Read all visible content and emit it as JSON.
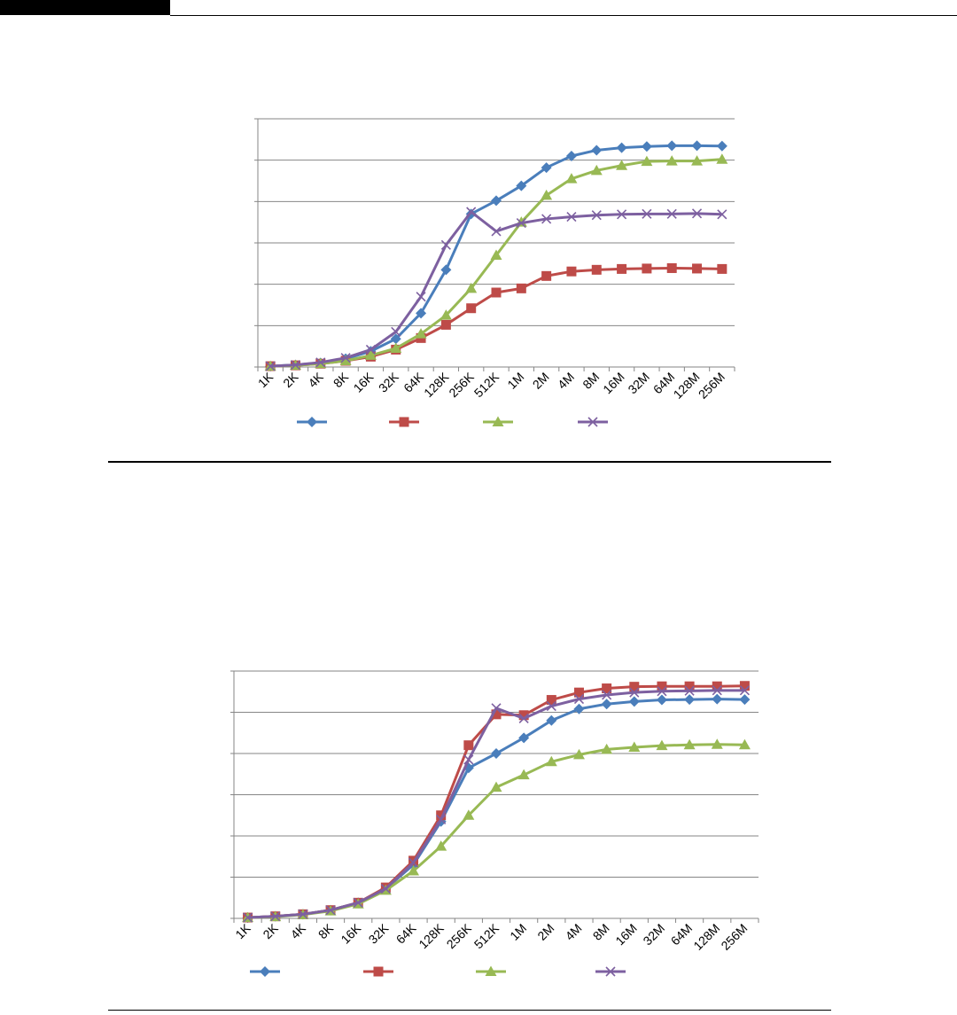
{
  "colors": {
    "series_1": "#4A7EBB",
    "series_2": "#BE4B48",
    "series_3": "#98B954",
    "series_4": "#7D60A0",
    "gridline": "#868686",
    "axis": "#868686"
  },
  "chart_data": [
    {
      "type": "line",
      "title": "",
      "xlabel": "",
      "ylabel": "",
      "categories": [
        "1K",
        "2K",
        "4K",
        "8K",
        "16K",
        "32K",
        "64K",
        "128K",
        "256K",
        "512K",
        "1M",
        "2M",
        "4M",
        "8M",
        "16M",
        "32M",
        "64M",
        "128M",
        "256M"
      ],
      "ylim": [
        0,
        6
      ],
      "yticks": [
        0,
        1,
        2,
        3,
        4,
        5,
        6
      ],
      "y_tick_labels_shown": false,
      "grid": true,
      "legend_position": "bottom",
      "series": [
        {
          "marker": "diamond",
          "color": "#4A7EBB",
          "values": [
            0.02,
            0.05,
            0.1,
            0.2,
            0.38,
            0.68,
            1.3,
            2.35,
            3.7,
            4.02,
            4.38,
            4.82,
            5.1,
            5.24,
            5.3,
            5.33,
            5.35,
            5.35,
            5.34
          ]
        },
        {
          "marker": "square",
          "color": "#BE4B48",
          "values": [
            0.02,
            0.04,
            0.08,
            0.15,
            0.25,
            0.42,
            0.7,
            1.02,
            1.42,
            1.8,
            1.9,
            2.2,
            2.31,
            2.35,
            2.37,
            2.38,
            2.39,
            2.38,
            2.37
          ]
        },
        {
          "marker": "triangle",
          "color": "#98B954",
          "values": [
            0.02,
            0.04,
            0.08,
            0.15,
            0.28,
            0.45,
            0.8,
            1.25,
            1.9,
            2.7,
            3.5,
            4.15,
            4.55,
            4.75,
            4.87,
            4.97,
            4.98,
            4.98,
            5.02
          ]
        },
        {
          "marker": "x",
          "color": "#7D60A0",
          "values": [
            0.02,
            0.05,
            0.11,
            0.22,
            0.42,
            0.85,
            1.7,
            2.95,
            3.75,
            3.28,
            3.48,
            3.58,
            3.63,
            3.67,
            3.69,
            3.7,
            3.7,
            3.71,
            3.69
          ]
        }
      ]
    },
    {
      "type": "line",
      "title": "",
      "xlabel": "",
      "ylabel": "",
      "categories": [
        "1K",
        "2K",
        "4K",
        "8K",
        "16K",
        "32K",
        "64K",
        "128K",
        "256K",
        "512K",
        "1M",
        "2M",
        "4M",
        "8M",
        "16M",
        "32M",
        "64M",
        "128M",
        "256M"
      ],
      "ylim": [
        0,
        6
      ],
      "yticks": [
        0,
        1,
        2,
        3,
        4,
        5,
        6
      ],
      "y_tick_labels_shown": false,
      "grid": true,
      "legend_position": "bottom",
      "series": [
        {
          "marker": "diamond",
          "color": "#4A7EBB",
          "values": [
            0.02,
            0.05,
            0.1,
            0.2,
            0.38,
            0.72,
            1.3,
            2.35,
            3.65,
            4.0,
            4.38,
            4.8,
            5.08,
            5.2,
            5.26,
            5.3,
            5.31,
            5.32,
            5.31
          ]
        },
        {
          "marker": "square",
          "color": "#BE4B48",
          "values": [
            0.02,
            0.05,
            0.1,
            0.2,
            0.38,
            0.75,
            1.4,
            2.5,
            4.2,
            4.95,
            4.93,
            5.3,
            5.48,
            5.58,
            5.62,
            5.63,
            5.63,
            5.63,
            5.64
          ]
        },
        {
          "marker": "triangle",
          "color": "#98B954",
          "values": [
            0.02,
            0.04,
            0.09,
            0.18,
            0.35,
            0.68,
            1.15,
            1.75,
            2.5,
            3.18,
            3.48,
            3.8,
            3.97,
            4.1,
            4.15,
            4.19,
            4.21,
            4.22,
            4.21
          ]
        },
        {
          "marker": "x",
          "color": "#7D60A0",
          "values": [
            0.02,
            0.05,
            0.1,
            0.2,
            0.38,
            0.72,
            1.35,
            2.4,
            3.85,
            5.1,
            4.85,
            5.15,
            5.32,
            5.42,
            5.48,
            5.51,
            5.52,
            5.53,
            5.53
          ]
        }
      ]
    }
  ]
}
